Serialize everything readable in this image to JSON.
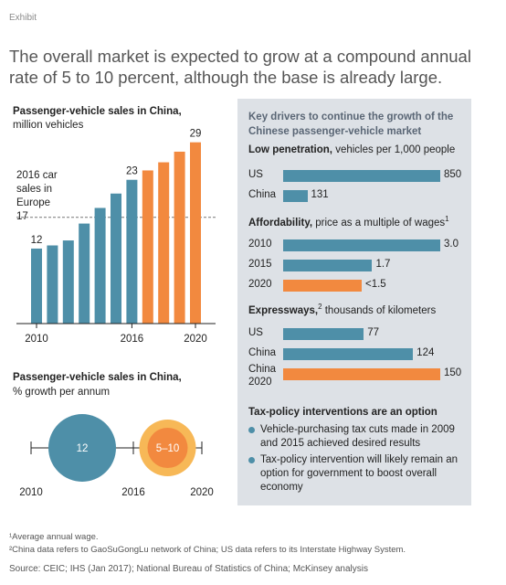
{
  "exhibit": "Exhibit",
  "headline": "The overall market is expected to grow at a compound annual rate of 5 to 10 percent, although the base is already large.",
  "left": {
    "chart1_title": "Passenger-vehicle sales in China,",
    "chart1_subtitle": "million vehicles",
    "europe_label_1": "2016 car",
    "europe_label_2": "sales in",
    "europe_label_3": "Europe",
    "europe_value": "17",
    "chart2_title": "Passenger-vehicle sales in China,",
    "chart2_subtitle": "% growth per annum"
  },
  "panel": {
    "title": "Key drivers to continue the growth of the Chinese passenger-vehicle market",
    "sec1_bold": "Low penetration,",
    "sec1_rest": " vehicles per 1,000 people",
    "sec2_bold": "Affordability,",
    "sec2_rest": " price as a multiple of wages",
    "sec2_sup": "1",
    "sec3_bold": "Expressways,",
    "sec3_sup": "2",
    "sec3_rest": " thousands of kilometers",
    "sec4_bold": "Tax-policy interventions are an option",
    "bullet1": "Vehicle-purchasing tax cuts made in 2009 and 2015 achieved desired results",
    "bullet2": "Tax-policy intervention will likely remain an option for government to boost overall economy"
  },
  "footnotes": {
    "f1": "¹Average annual wage.",
    "f2": "²China data refers to GaoSuGongLu network of China; US data refers to its Interstate Highway System.",
    "source": "Source: CEIC; IHS (Jan 2017); National Bureau of Statistics of China; McKinsey analysis"
  },
  "colors": {
    "historical": "#4e8fa8",
    "forecast": "#f2893f",
    "forecast_ring": "#f7b857",
    "panel_bg": "#dde1e6"
  },
  "chart_data": [
    {
      "type": "bar",
      "title": "Passenger-vehicle sales in China,",
      "subtitle": "million vehicles",
      "categories": [
        "2010",
        "2011",
        "2012",
        "2013",
        "2014",
        "2015",
        "2016",
        "2017",
        "2018",
        "2019",
        "2020"
      ],
      "values": [
        12,
        12.5,
        13.3,
        16,
        18.5,
        20.8,
        23,
        24.5,
        25.8,
        27.5,
        29
      ],
      "forecast_from_index": 7,
      "x_tick_labels": [
        "2010",
        "2016",
        "2020"
      ],
      "data_labels": [
        {
          "index": 0,
          "label": "12"
        },
        {
          "index": 6,
          "label": "23"
        },
        {
          "index": 10,
          "label": "29"
        }
      ],
      "reference_line": {
        "value": 17,
        "label": "2016 car sales in Europe"
      },
      "ylim": [
        0,
        31
      ]
    },
    {
      "type": "bubble",
      "title": "Passenger-vehicle sales in China,",
      "subtitle": "% growth per annum",
      "x_tick_labels": [
        "2010",
        "2016",
        "2020"
      ],
      "bubbles": [
        {
          "period": "2010–2016",
          "label": "12",
          "value": 12
        },
        {
          "period": "2016–2020",
          "label": "5–10",
          "value": [
            5,
            10
          ]
        }
      ]
    },
    {
      "type": "bar",
      "title": "Low penetration, vehicles per 1,000 people",
      "categories": [
        "US",
        "China"
      ],
      "values": [
        850,
        131
      ],
      "labels": [
        "850",
        "131"
      ]
    },
    {
      "type": "bar",
      "title": "Affordability, price as a multiple of wages",
      "categories": [
        "2010",
        "2015",
        "2020"
      ],
      "values": [
        3.0,
        1.7,
        1.5
      ],
      "labels": [
        "3.0",
        "1.7",
        "<1.5"
      ],
      "forecast_from_index": 2
    },
    {
      "type": "bar",
      "title": "Expressways, thousands of kilometers",
      "categories": [
        "US",
        "China",
        "China 2020"
      ],
      "values": [
        77,
        124,
        150
      ],
      "labels": [
        "77",
        "124",
        "150"
      ],
      "forecast_from_index": 2
    }
  ]
}
